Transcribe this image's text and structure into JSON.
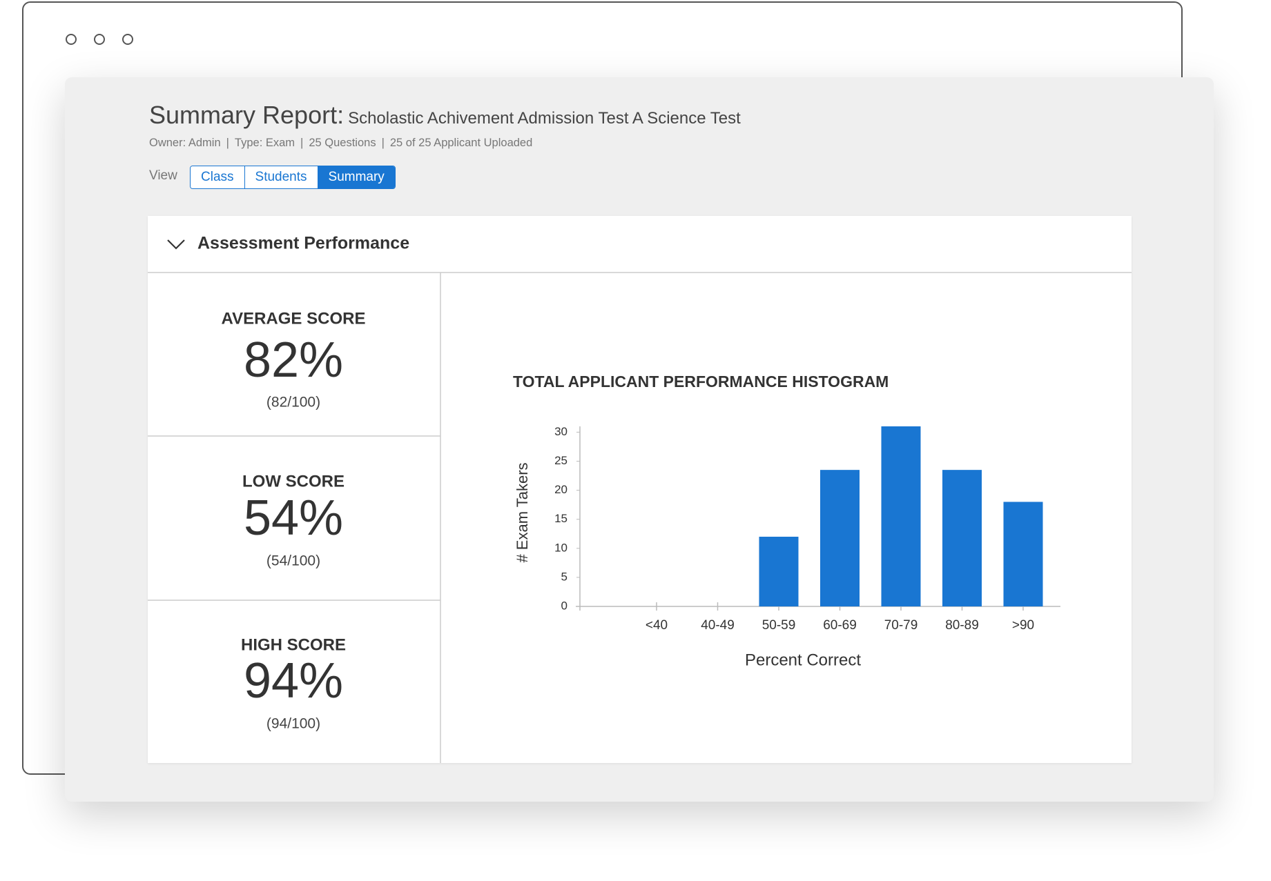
{
  "header": {
    "title": "Summary Report:",
    "subtitle": "Scholastic Achivement Admission Test A Science Test",
    "meta": [
      "Owner: Admin",
      "Type: Exam",
      "25 Questions",
      "25 of 25 Applicant Uploaded"
    ]
  },
  "view": {
    "label": "View",
    "tabs": [
      "Class",
      "Students",
      "Summary"
    ],
    "active": 2
  },
  "panel": {
    "title": "Assessment Performance"
  },
  "stats": [
    {
      "label": "AVERAGE SCORE",
      "value": "82%",
      "detail": "(82/100)"
    },
    {
      "label": "LOW SCORE",
      "value": "54%",
      "detail": "(54/100)"
    },
    {
      "label": "HIGH SCORE",
      "value": "94%",
      "detail": "(94/100)"
    }
  ],
  "chart_data": {
    "type": "bar",
    "title": "TOTAL APPLICANT PERFORMANCE HISTOGRAM",
    "x_label": "Percent Correct",
    "y_label": "# Exam Takers",
    "categories": [
      "<40",
      "40-49",
      "50-59",
      "60-69",
      "70-79",
      "80-89",
      ">90"
    ],
    "values": [
      0,
      0,
      12,
      23.5,
      31,
      23.5,
      18
    ],
    "color": "#1976d2",
    "ylim": [
      0,
      31
    ],
    "yticks": [
      0,
      5,
      10,
      15,
      20,
      25,
      30
    ],
    "grid": false
  }
}
